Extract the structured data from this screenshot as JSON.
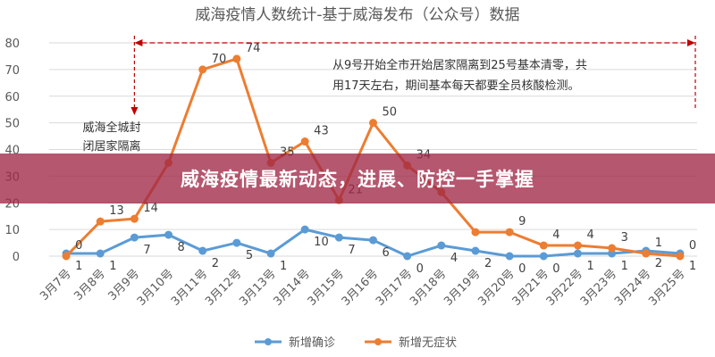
{
  "banner": {
    "text": "威海疫情最新动态，进展、防控一手掌握"
  },
  "annotations": {
    "left_note": [
      "威海全城封",
      "闭居家隔离"
    ],
    "right_note": [
      "从9号开始全市开始居家隔离到25号基本清零，共",
      "用17天左右，期间基本每天都要全员核酸检测。"
    ]
  },
  "colors": {
    "confirmed": "#5B9BD5",
    "asymptomatic": "#ED7D31",
    "annotation_line": "#C00000",
    "grid": "#D9D9D9",
    "overlay": "#A02846"
  },
  "chart_data": {
    "type": "line",
    "title": "威海疫情人数统计-基于威海发布（公众号）数据",
    "categories": [
      "3月7号",
      "3月8号",
      "3月9号",
      "3月10号",
      "3月11号",
      "3月12号",
      "3月13号",
      "3月14号",
      "3月15号",
      "3月16号",
      "3月17号",
      "3月18号",
      "3月19号",
      "3月20号",
      "3月21号",
      "3月22号",
      "3月23号",
      "3月24号",
      "3月25号"
    ],
    "series": [
      {
        "name": "新增确诊",
        "values": [
          1,
          1,
          7,
          8,
          2,
          5,
          1,
          10,
          7,
          6,
          0,
          4,
          2,
          0,
          0,
          1,
          1,
          2,
          1
        ]
      },
      {
        "name": "新增无症状",
        "values": [
          0,
          13,
          14,
          35,
          70,
          74,
          35,
          43,
          21,
          50,
          34,
          24,
          9,
          9,
          4,
          4,
          3,
          1,
          0
        ]
      }
    ],
    "data_labels_shown": {
      "新增确诊": [
        "1",
        "1",
        "7",
        "8",
        "2",
        "5",
        "1",
        "10",
        "7",
        "6",
        "0",
        "4",
        "2",
        "0",
        "0",
        "1",
        "1",
        "2",
        "1"
      ],
      "新增无症状": [
        "0",
        "13",
        "14",
        "",
        "70",
        "74",
        "35",
        "43",
        "21",
        "50",
        "34",
        "",
        "",
        "9",
        "4",
        "4",
        "3",
        "1",
        "0"
      ]
    },
    "ylim": [
      0,
      80
    ],
    "yticks": [
      0,
      10,
      20,
      30,
      40,
      50,
      60,
      70,
      80
    ],
    "grid": true,
    "legend": "bottom",
    "xlabel": "",
    "ylabel": ""
  }
}
